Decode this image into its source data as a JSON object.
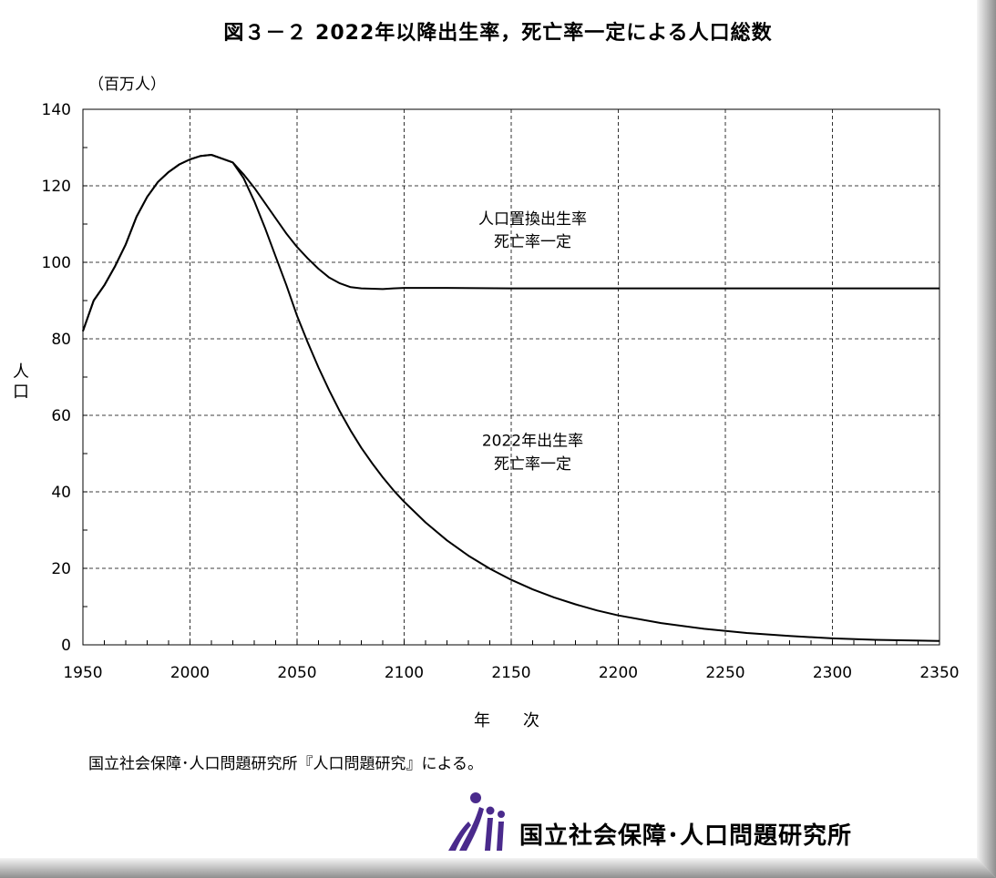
{
  "chart_data": {
    "type": "line",
    "title": "図３－２ 2022年以降出生率，死亡率一定による人口総数",
    "unit_label": "（百万人）",
    "xlabel": "年　　次",
    "ylabel": "人口",
    "xlim": [
      1950,
      2350
    ],
    "ylim": [
      0,
      140
    ],
    "xticks": [
      1950,
      2000,
      2050,
      2100,
      2150,
      2200,
      2250,
      2300,
      2350
    ],
    "yticks": [
      0,
      20,
      40,
      60,
      80,
      100,
      120,
      140
    ],
    "grid": true,
    "series": [
      {
        "name": "人口置換出生率 死亡率一定",
        "label_lines": [
          "人口置換出生率",
          "死亡率一定"
        ],
        "x": [
          1950,
          1955,
          1960,
          1965,
          1970,
          1975,
          1980,
          1985,
          1990,
          1995,
          2000,
          2005,
          2010,
          2015,
          2020,
          2025,
          2030,
          2035,
          2040,
          2045,
          2050,
          2055,
          2060,
          2065,
          2070,
          2075,
          2080,
          2085,
          2090,
          2095,
          2100,
          2120,
          2150,
          2200,
          2250,
          2300,
          2350
        ],
        "values": [
          82.0,
          90.0,
          94.0,
          99.0,
          104.7,
          111.9,
          117.1,
          121.0,
          123.6,
          125.6,
          126.9,
          127.8,
          128.1,
          127.1,
          126.1,
          123.0,
          119.5,
          115.5,
          111.5,
          107.5,
          104.0,
          101.0,
          98.3,
          96.0,
          94.5,
          93.5,
          93.2,
          93.1,
          93.0,
          93.2,
          93.3,
          93.3,
          93.2,
          93.2,
          93.2,
          93.2,
          93.2
        ]
      },
      {
        "name": "2022年出生率 死亡率一定",
        "label_lines": [
          "2022年出生率",
          "死亡率一定"
        ],
        "x": [
          1950,
          1955,
          1960,
          1965,
          1970,
          1975,
          1980,
          1985,
          1990,
          1995,
          2000,
          2005,
          2010,
          2015,
          2020,
          2025,
          2030,
          2035,
          2040,
          2045,
          2050,
          2055,
          2060,
          2065,
          2070,
          2075,
          2080,
          2085,
          2090,
          2095,
          2100,
          2110,
          2120,
          2130,
          2140,
          2150,
          2160,
          2170,
          2180,
          2190,
          2200,
          2220,
          2240,
          2260,
          2280,
          2300,
          2320,
          2350
        ],
        "values": [
          82.0,
          90.0,
          94.0,
          99.0,
          104.7,
          111.9,
          117.1,
          121.0,
          123.6,
          125.6,
          126.9,
          127.8,
          128.1,
          127.1,
          126.1,
          122.0,
          116.0,
          109.0,
          101.5,
          94.0,
          86.0,
          79.0,
          72.5,
          66.5,
          61.0,
          56.0,
          51.5,
          47.5,
          43.8,
          40.4,
          37.4,
          32.0,
          27.3,
          23.3,
          19.9,
          17.0,
          14.5,
          12.4,
          10.6,
          9.0,
          7.7,
          5.7,
          4.2,
          3.1,
          2.3,
          1.7,
          1.3,
          1.0
        ]
      }
    ]
  },
  "source_note": "国立社会保障･人口問題研究所『人口問題研究』による。",
  "organization": {
    "name": "国立社会保障･人口問題研究所",
    "logo_icon": "ipss-logo-icon"
  },
  "colors": {
    "frame_shadow": "#9a9a9a",
    "line": "#000000",
    "grid": "#000000"
  }
}
